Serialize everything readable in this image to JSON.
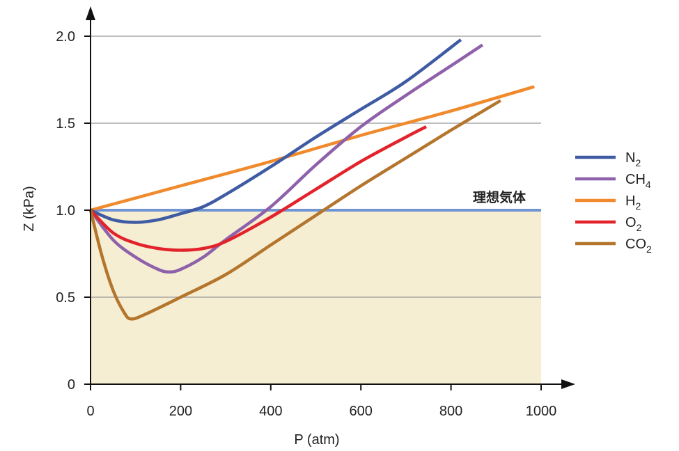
{
  "chart_data": {
    "type": "line",
    "xlabel": "P (atm)",
    "ylabel": "Z (kPa)",
    "xlim": [
      0,
      1000
    ],
    "ylim": [
      0,
      2.0
    ],
    "x_ticks": [
      "0",
      "200",
      "400",
      "600",
      "800",
      "1000"
    ],
    "y_ticks": [
      "0",
      "0.5",
      "1.0",
      "1.5",
      "2.0"
    ],
    "grid": "horizontal",
    "legend_position": "right",
    "ideal_gas": {
      "label": "理想気体",
      "value": 1.0,
      "color": "#6f94d4"
    },
    "region_fill": "#f6eed3",
    "series": [
      {
        "name": "N",
        "sub": "2",
        "color": "#3e5ba3",
        "points": [
          [
            0,
            1.0
          ],
          [
            50,
            0.945
          ],
          [
            100,
            0.93
          ],
          [
            150,
            0.945
          ],
          [
            200,
            0.98
          ],
          [
            250,
            1.02
          ],
          [
            300,
            1.09
          ],
          [
            400,
            1.25
          ],
          [
            500,
            1.42
          ],
          [
            600,
            1.58
          ],
          [
            700,
            1.74
          ],
          [
            822,
            1.98
          ]
        ]
      },
      {
        "name": "CH",
        "sub": "4",
        "color": "#8e61aa",
        "points": [
          [
            0,
            1.0
          ],
          [
            50,
            0.83
          ],
          [
            100,
            0.73
          ],
          [
            150,
            0.66
          ],
          [
            175,
            0.645
          ],
          [
            200,
            0.66
          ],
          [
            250,
            0.73
          ],
          [
            300,
            0.83
          ],
          [
            400,
            1.02
          ],
          [
            500,
            1.26
          ],
          [
            600,
            1.48
          ],
          [
            700,
            1.66
          ],
          [
            800,
            1.83
          ],
          [
            870,
            1.95
          ]
        ]
      },
      {
        "name": "H",
        "sub": "2",
        "color": "#f08a2c",
        "points": [
          [
            0,
            1.0
          ],
          [
            200,
            1.14
          ],
          [
            400,
            1.28
          ],
          [
            600,
            1.43
          ],
          [
            800,
            1.57
          ],
          [
            985,
            1.71
          ]
        ]
      },
      {
        "name": "O",
        "sub": "2",
        "color": "#e3232b",
        "points": [
          [
            0,
            1.0
          ],
          [
            50,
            0.87
          ],
          [
            100,
            0.81
          ],
          [
            150,
            0.78
          ],
          [
            200,
            0.77
          ],
          [
            250,
            0.78
          ],
          [
            300,
            0.82
          ],
          [
            400,
            0.96
          ],
          [
            500,
            1.12
          ],
          [
            600,
            1.28
          ],
          [
            700,
            1.42
          ],
          [
            745,
            1.48
          ]
        ]
      },
      {
        "name": "CO",
        "sub": "2",
        "color": "#b4752d",
        "points": [
          [
            0,
            1.0
          ],
          [
            25,
            0.74
          ],
          [
            50,
            0.54
          ],
          [
            75,
            0.41
          ],
          [
            90,
            0.375
          ],
          [
            120,
            0.4
          ],
          [
            200,
            0.5
          ],
          [
            300,
            0.63
          ],
          [
            400,
            0.8
          ],
          [
            500,
            0.97
          ],
          [
            600,
            1.14
          ],
          [
            700,
            1.3
          ],
          [
            800,
            1.46
          ],
          [
            910,
            1.63
          ]
        ]
      }
    ]
  }
}
